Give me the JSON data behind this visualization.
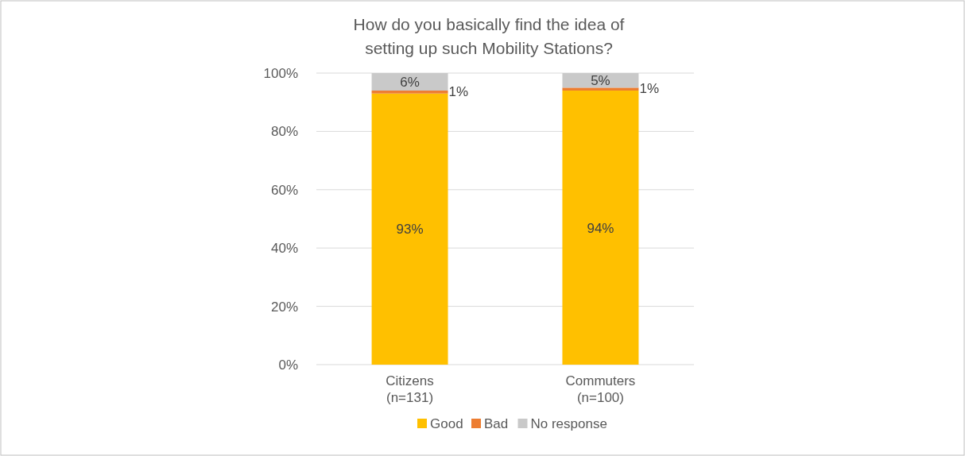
{
  "chart_data": {
    "type": "bar",
    "title": "How do you basically find the idea of setting up such Mobility Stations?",
    "categories": [
      "Citizens (n=131)",
      "Commuters (n=100)"
    ],
    "stacked": true,
    "series": [
      {
        "name": "Good",
        "color": "#ffc000",
        "values": [
          93,
          94
        ],
        "value_labels": [
          "93%",
          "94%"
        ]
      },
      {
        "name": "Bad",
        "color": "#ed7d31",
        "values": [
          1,
          1
        ],
        "value_labels": [
          "1%",
          "1%"
        ]
      },
      {
        "name": "No response",
        "color": "#c9c9c9",
        "values": [
          6,
          5
        ],
        "value_labels": [
          "6%",
          "5%"
        ]
      }
    ],
    "ylim": [
      0,
      100
    ],
    "yticks": [
      {
        "value": 0,
        "label": "0%"
      },
      {
        "value": 20,
        "label": "20%"
      },
      {
        "value": 40,
        "label": "40%"
      },
      {
        "value": 60,
        "label": "60%"
      },
      {
        "value": 80,
        "label": "80%"
      },
      {
        "value": 100,
        "label": "100%"
      }
    ],
    "grid": "y",
    "legend": "bottom"
  }
}
